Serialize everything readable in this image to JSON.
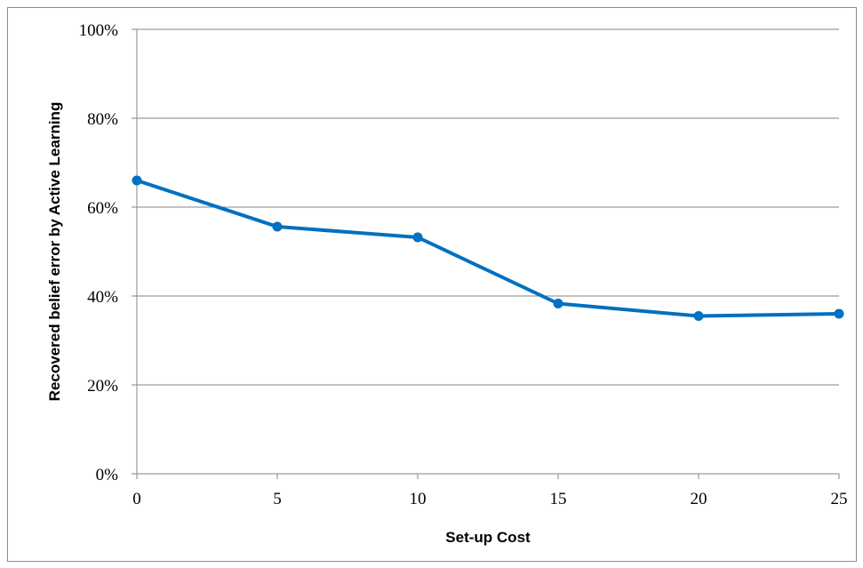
{
  "chart_data": {
    "type": "line",
    "title": "",
    "xlabel": "Set-up Cost",
    "ylabel": "Recovered belief error by Active Learning",
    "x": [
      0,
      5,
      10,
      15,
      20,
      25
    ],
    "series": [
      {
        "values": [
          66.0,
          55.6,
          53.2,
          38.3,
          35.5,
          36.0
        ]
      }
    ],
    "xlim": [
      0,
      25
    ],
    "ylim": [
      0,
      100
    ],
    "x_ticks": [
      "0",
      "5",
      "10",
      "15",
      "20",
      "25"
    ],
    "y_ticks": [
      "0%",
      "20%",
      "40%",
      "60%",
      "80%",
      "100%"
    ],
    "grid": "horizontal",
    "legend": "none",
    "colors": {
      "series": "#0070C0",
      "grid": "#868686",
      "axis": "#868686"
    }
  }
}
